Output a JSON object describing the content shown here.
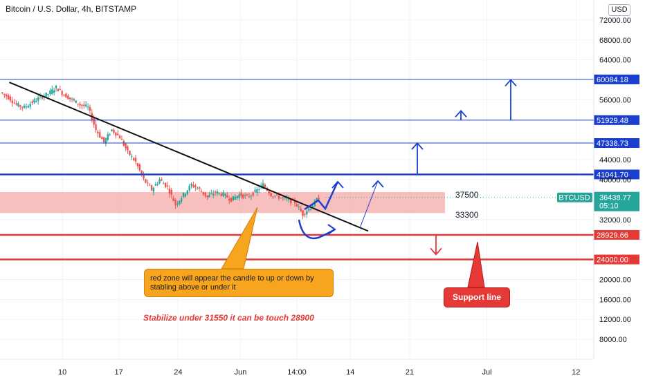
{
  "header": {
    "title": "Bitcoin / U.S. Dollar, 4h, BITSTAMP",
    "currency_button": "USD"
  },
  "annotations": {
    "orange_note": "red zone will appear the candle to up or down by stabling above or under it",
    "support_label": "Support line",
    "stabilize_text": "Stabilize under 31550 it can be touch 28900",
    "zone_upper": "37500",
    "zone_lower": "33300"
  },
  "colors": {
    "up": "#26a69a",
    "down": "#ef5350",
    "level_blue": "#1a3fcf",
    "level_red": "#e53935",
    "zone_fill": "#f5a9a9",
    "trendline": "#111111",
    "orange": "#f7a51e"
  },
  "chart_data": {
    "type": "candlestick",
    "symbol": "BTCUSD",
    "interval": "4h",
    "ylim": [
      4000,
      76000
    ],
    "y_ticks": [
      "72000.00",
      "68000.00",
      "64000.00",
      "56000.00",
      "44000.00",
      "40000.00",
      "32000.00",
      "20000.00",
      "16000.00",
      "12000.00",
      "8000.00"
    ],
    "x_ticks": [
      "10",
      "17",
      "24",
      "Jun",
      "14:00",
      "14",
      "21",
      "Jul",
      "12"
    ],
    "last_price": {
      "label": "BTCUSD",
      "value": "36438.77",
      "countdown": "05:10"
    },
    "horizontal_levels": [
      {
        "value": 60084.18,
        "label": "60084.18",
        "color": "blue"
      },
      {
        "value": 51929.48,
        "label": "51929.48",
        "color": "blue"
      },
      {
        "value": 47338.73,
        "label": "47338.73",
        "color": "blue"
      },
      {
        "value": 41041.7,
        "label": "41041.70",
        "color": "blue"
      },
      {
        "value": 28929.66,
        "label": "28929.66",
        "color": "red"
      },
      {
        "value": 24000.0,
        "label": "24000.00",
        "color": "red"
      }
    ],
    "zone": {
      "top": 37500,
      "bottom": 33300
    },
    "trendline": {
      "from": [
        1,
        59500
      ],
      "to": [
        40,
        29700
      ]
    },
    "price_path": [
      [
        0,
        57500
      ],
      [
        1,
        56500
      ],
      [
        2,
        55000
      ],
      [
        3,
        54500
      ],
      [
        4,
        55500
      ],
      [
        5,
        56500
      ],
      [
        6,
        57200
      ],
      [
        7,
        58500
      ],
      [
        8,
        57000
      ],
      [
        9,
        56000
      ],
      [
        10,
        55000
      ],
      [
        11,
        54500
      ],
      [
        12,
        50000
      ],
      [
        13,
        47500
      ],
      [
        14,
        50000
      ],
      [
        15,
        48500
      ],
      [
        16,
        45500
      ],
      [
        17,
        43500
      ],
      [
        18,
        40000
      ],
      [
        19,
        38000
      ],
      [
        20,
        40000
      ],
      [
        21,
        38500
      ],
      [
        22,
        35000
      ],
      [
        23,
        37000
      ],
      [
        24,
        39000
      ],
      [
        25,
        38000
      ],
      [
        26,
        36500
      ],
      [
        27,
        37500
      ],
      [
        28,
        37000
      ],
      [
        29,
        36000
      ],
      [
        30,
        37000
      ],
      [
        31,
        36500
      ],
      [
        32,
        37500
      ],
      [
        33,
        39000
      ],
      [
        34,
        37000
      ],
      [
        35,
        36500
      ],
      [
        36,
        36000
      ],
      [
        37,
        35500
      ],
      [
        38,
        33000
      ],
      [
        39,
        34500
      ],
      [
        40,
        36400
      ]
    ],
    "arrows": [
      {
        "type": "up",
        "x": 28.5,
        "from": 41000,
        "to": 47300
      },
      {
        "type": "up",
        "x": 31.5,
        "from": 51900,
        "to": 53800
      },
      {
        "type": "up",
        "x": 35,
        "from": 51900,
        "to": 60000
      },
      {
        "type": "down",
        "x": 29.8,
        "from": 29000,
        "to": 25000
      }
    ]
  }
}
